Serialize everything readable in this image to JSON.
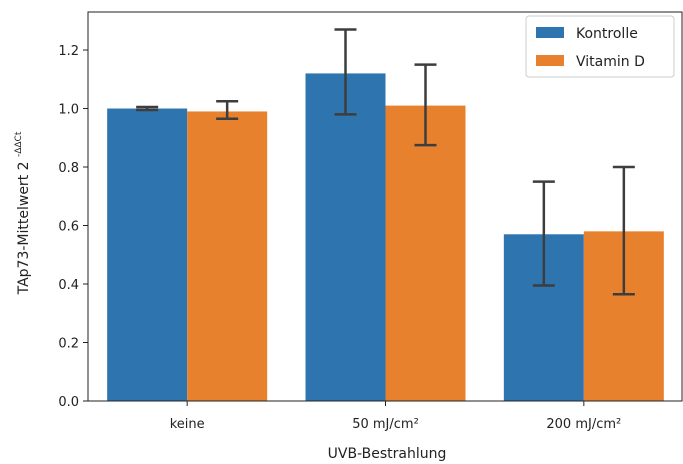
{
  "chart_data": {
    "type": "bar",
    "title": "",
    "xlabel": "UVB-Bestrahlung",
    "ylabel": "TAp73-Mittelwert 2^-ΔΔCt",
    "ylabel_main": "TAp73-Mittelwert 2",
    "ylabel_sup": "-ΔΔCt",
    "categories": [
      "keine",
      "50 mJ/cm²",
      "200 mJ/cm²"
    ],
    "ylim": [
      0,
      1.33
    ],
    "yticks": [
      "0.0",
      "0.2",
      "0.4",
      "0.6",
      "0.8",
      "1.0",
      "1.2"
    ],
    "ytick_values": [
      0,
      0.2,
      0.4,
      0.6,
      0.8,
      1.0,
      1.2
    ],
    "series": [
      {
        "name": "Kontrolle",
        "color": "#2e75b0",
        "values": [
          1.0,
          1.12,
          0.57
        ],
        "err_low": [
          0.995,
          0.98,
          0.395
        ],
        "err_high": [
          1.005,
          1.27,
          0.75
        ]
      },
      {
        "name": "Vitamin D",
        "color": "#e8812d",
        "values": [
          0.99,
          1.01,
          0.58
        ],
        "err_low": [
          0.965,
          0.875,
          0.365
        ],
        "err_high": [
          1.025,
          1.15,
          0.8
        ]
      }
    ],
    "annotation": {
      "text": "***",
      "category_index": 2,
      "y": 1.235
    },
    "legend_position": "top-right",
    "grid": false
  }
}
